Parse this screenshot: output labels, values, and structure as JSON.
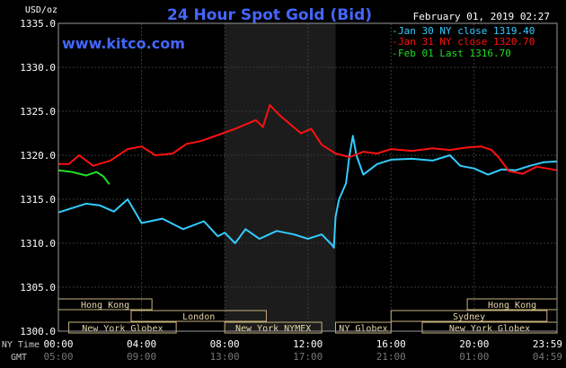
{
  "chart_data": {
    "type": "line",
    "title": "24 Hour Spot Gold (Bid)",
    "ylabel": "USD/oz",
    "source": "www.kitco.com",
    "date": "February 01, 2019 02:27",
    "ylim": [
      1300,
      1335
    ],
    "yticks": [
      "1300.0",
      "1305.0",
      "1310.0",
      "1315.0",
      "1320.0",
      "1325.0",
      "1330.0",
      "1335.0"
    ],
    "xlim_minutes": [
      0,
      1439
    ],
    "ny_time_label": "NY Time",
    "gmt_label": "GMT",
    "x_ticks_ny": [
      "00:00",
      "04:00",
      "08:00",
      "12:00",
      "16:00",
      "20:00",
      "23:59"
    ],
    "x_ticks_gmt": [
      "05:00",
      "09:00",
      "13:00",
      "17:00",
      "21:00",
      "01:00",
      "04:59"
    ],
    "grid": true,
    "legend_position": "top-right",
    "series": [
      {
        "name": "Jan 30 NY close 1319.40",
        "color": "#33ccff",
        "points": [
          [
            0,
            1313.5
          ],
          [
            40,
            1314.0
          ],
          [
            80,
            1314.5
          ],
          [
            120,
            1314.3
          ],
          [
            160,
            1313.6
          ],
          [
            200,
            1315.0
          ],
          [
            240,
            1312.3
          ],
          [
            300,
            1312.8
          ],
          [
            360,
            1311.6
          ],
          [
            420,
            1312.5
          ],
          [
            460,
            1310.8
          ],
          [
            480,
            1311.2
          ],
          [
            510,
            1310.0
          ],
          [
            540,
            1311.6
          ],
          [
            580,
            1310.5
          ],
          [
            630,
            1311.4
          ],
          [
            680,
            1311.0
          ],
          [
            720,
            1310.5
          ],
          [
            760,
            1311.0
          ],
          [
            790,
            1309.8
          ],
          [
            795,
            1309.5
          ],
          [
            800,
            1313.0
          ],
          [
            810,
            1315.0
          ],
          [
            830,
            1316.8
          ],
          [
            840,
            1320.0
          ],
          [
            850,
            1322.2
          ],
          [
            860,
            1320.0
          ],
          [
            880,
            1317.8
          ],
          [
            920,
            1319.0
          ],
          [
            960,
            1319.5
          ],
          [
            1020,
            1319.6
          ],
          [
            1080,
            1319.4
          ],
          [
            1130,
            1320.0
          ],
          [
            1160,
            1318.8
          ],
          [
            1200,
            1318.5
          ],
          [
            1240,
            1317.8
          ],
          [
            1280,
            1318.4
          ],
          [
            1320,
            1318.3
          ],
          [
            1360,
            1318.8
          ],
          [
            1400,
            1319.2
          ],
          [
            1439,
            1319.3
          ]
        ]
      },
      {
        "name": "Jan 31 NY close 1320.70",
        "color": "#ff1111",
        "points": [
          [
            0,
            1319.0
          ],
          [
            30,
            1319.0
          ],
          [
            60,
            1320.0
          ],
          [
            100,
            1318.8
          ],
          [
            150,
            1319.4
          ],
          [
            200,
            1320.7
          ],
          [
            240,
            1321.0
          ],
          [
            280,
            1320.0
          ],
          [
            330,
            1320.2
          ],
          [
            370,
            1321.3
          ],
          [
            410,
            1321.6
          ],
          [
            460,
            1322.3
          ],
          [
            510,
            1323.0
          ],
          [
            540,
            1323.5
          ],
          [
            570,
            1324.0
          ],
          [
            590,
            1323.2
          ],
          [
            610,
            1325.7
          ],
          [
            640,
            1324.5
          ],
          [
            700,
            1322.5
          ],
          [
            730,
            1323.0
          ],
          [
            760,
            1321.2
          ],
          [
            800,
            1320.2
          ],
          [
            840,
            1319.8
          ],
          [
            880,
            1320.4
          ],
          [
            920,
            1320.2
          ],
          [
            960,
            1320.7
          ],
          [
            1020,
            1320.5
          ],
          [
            1080,
            1320.8
          ],
          [
            1130,
            1320.6
          ],
          [
            1180,
            1320.9
          ],
          [
            1220,
            1321.0
          ],
          [
            1250,
            1320.6
          ],
          [
            1270,
            1319.8
          ],
          [
            1300,
            1318.2
          ],
          [
            1340,
            1317.9
          ],
          [
            1380,
            1318.7
          ],
          [
            1410,
            1318.5
          ],
          [
            1439,
            1318.3
          ]
        ]
      },
      {
        "name": "Feb 01 Last 1316.70",
        "color": "#22dd22",
        "points": [
          [
            0,
            1318.3
          ],
          [
            40,
            1318.1
          ],
          [
            80,
            1317.7
          ],
          [
            110,
            1318.1
          ],
          [
            130,
            1317.6
          ],
          [
            147,
            1316.7
          ]
        ]
      }
    ],
    "sessions": [
      {
        "name": "Hong Kong",
        "row": 0,
        "start": 0,
        "end": 270
      },
      {
        "name": "Hong Kong",
        "row": 0,
        "start": 1180,
        "end": 1439
      },
      {
        "name": "London",
        "row": 1,
        "start": 210,
        "end": 600
      },
      {
        "name": "Sydney",
        "row": 1,
        "start": 960,
        "end": 1410
      },
      {
        "name": "New York Globex",
        "row": 2,
        "start": 30,
        "end": 340
      },
      {
        "name": "New York NYMEX",
        "row": 2,
        "start": 480,
        "end": 760
      },
      {
        "name": "NY Globex",
        "row": 2,
        "start": 800,
        "end": 960
      },
      {
        "name": "New York Globex",
        "row": 2,
        "start": 1050,
        "end": 1439
      }
    ],
    "highlight_band_minutes": [
      480,
      800
    ]
  }
}
